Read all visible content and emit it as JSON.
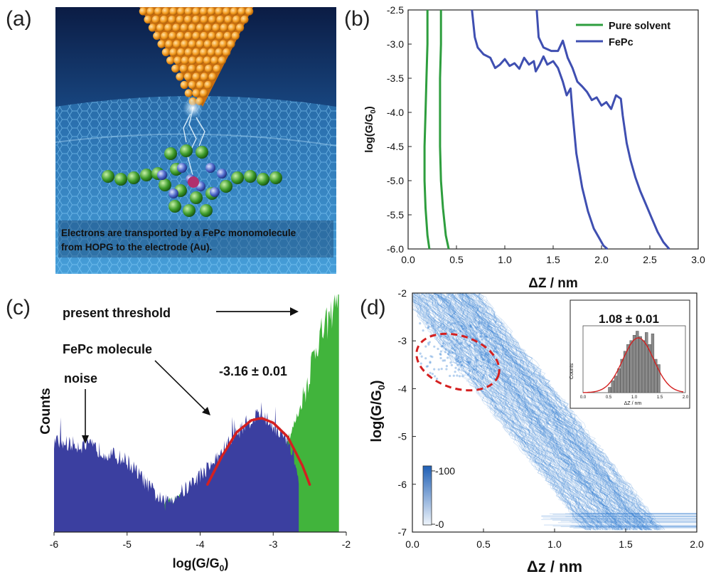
{
  "panels": {
    "a": {
      "label": "(a)",
      "caption_line1": "Electrons are transported by a FePc monomolecule",
      "caption_line2": "from HOPG to the electrode (Au)."
    },
    "b": {
      "label": "(b)"
    },
    "c": {
      "label": "(c)"
    },
    "d": {
      "label": "(d)"
    }
  },
  "colors": {
    "green": "#2e9e3e",
    "blue": "#3f4fb1",
    "red": "#d42020",
    "hist_green": "#41b43c",
    "hist_blue": "#3b3fa0",
    "map_blue": "#2e7bd0"
  },
  "chart_data": [
    {
      "id": "b",
      "type": "line",
      "title": "",
      "xlabel": "ΔZ / nm",
      "ylabel": "log(G/G0)",
      "xlim": [
        0,
        3.0
      ],
      "ylim": [
        -6.0,
        -2.5
      ],
      "xticks": [
        "0.0",
        "0.5",
        "1.0",
        "1.5",
        "2.0",
        "2.5",
        "3.0"
      ],
      "yticks": [
        "-2.5",
        "-3.0",
        "-3.5",
        "-4.0",
        "-4.5",
        "-5.0",
        "-5.5",
        "-6.0"
      ],
      "legend": [
        "Pure solvent",
        "FePc"
      ],
      "legend_position": "top-right",
      "series": [
        {
          "name": "Pure solvent",
          "color": "green",
          "x": [
            0.2,
            0.2,
            0.19,
            0.18,
            0.17,
            0.17,
            0.18,
            0.2,
            0.22
          ],
          "y": [
            -2.5,
            -3.0,
            -3.5,
            -4.0,
            -4.5,
            -5.0,
            -5.4,
            -5.8,
            -6.0
          ]
        },
        {
          "name": "Pure solvent",
          "color": "green",
          "x": [
            0.34,
            0.34,
            0.33,
            0.33,
            0.33,
            0.34,
            0.36,
            0.39,
            0.42
          ],
          "y": [
            -2.5,
            -3.0,
            -3.5,
            -4.0,
            -4.5,
            -5.0,
            -5.4,
            -5.8,
            -6.0
          ]
        },
        {
          "name": "FePc",
          "color": "blue",
          "x": [
            0.66,
            0.69,
            0.72,
            0.78,
            0.85,
            0.9,
            0.95,
            1.0,
            1.05,
            1.1,
            1.15,
            1.2,
            1.25,
            1.3,
            1.32,
            1.36,
            1.4,
            1.44,
            1.5,
            1.55,
            1.6,
            1.64,
            1.68,
            1.7,
            1.74,
            1.8,
            1.86,
            1.92,
            1.98,
            2.02,
            2.06
          ],
          "y": [
            -2.5,
            -2.9,
            -3.05,
            -3.15,
            -3.2,
            -3.35,
            -3.3,
            -3.22,
            -3.32,
            -3.28,
            -3.36,
            -3.2,
            -3.3,
            -3.25,
            -3.4,
            -3.3,
            -3.18,
            -3.3,
            -3.25,
            -3.35,
            -3.55,
            -3.75,
            -3.65,
            -4.0,
            -4.6,
            -5.1,
            -5.45,
            -5.7,
            -5.85,
            -5.95,
            -6.0
          ]
        },
        {
          "name": "FePc",
          "color": "blue",
          "x": [
            1.33,
            1.35,
            1.4,
            1.48,
            1.55,
            1.6,
            1.65,
            1.7,
            1.75,
            1.8,
            1.85,
            1.9,
            1.95,
            2.0,
            2.05,
            2.1,
            2.15,
            2.2,
            2.22,
            2.26,
            2.3,
            2.35,
            2.4,
            2.46,
            2.52,
            2.58,
            2.64,
            2.7
          ],
          "y": [
            -2.5,
            -2.9,
            -3.05,
            -3.1,
            -3.1,
            -2.95,
            -3.2,
            -3.35,
            -3.55,
            -3.62,
            -3.7,
            -3.82,
            -3.78,
            -3.9,
            -3.85,
            -3.95,
            -3.75,
            -3.8,
            -4.05,
            -4.45,
            -4.7,
            -4.95,
            -5.15,
            -5.35,
            -5.55,
            -5.75,
            -5.9,
            -6.0
          ]
        }
      ]
    },
    {
      "id": "c",
      "type": "area",
      "xlabel": "log(G/G0)",
      "ylabel": "Counts",
      "xlim": [
        -6,
        -2
      ],
      "xticks": [
        "-6",
        "-5",
        "-4",
        "-3",
        "-2"
      ],
      "annotations": {
        "threshold": "present threshold",
        "molecule": "FePc molecule",
        "noise": "noise",
        "peak": "-3.16 ± 0.01"
      },
      "series": [
        {
          "name": "green histogram",
          "color": "hist_green",
          "x": [
            -6.0,
            -5.5,
            -5.0,
            -4.5,
            -4.0,
            -3.5,
            -3.0,
            -2.75,
            -2.6,
            -2.5,
            -2.4,
            -2.3,
            -2.2,
            -2.15,
            -2.1
          ],
          "y": [
            0.22,
            0.2,
            0.18,
            0.12,
            0.16,
            0.24,
            0.32,
            0.42,
            0.55,
            0.68,
            0.8,
            0.85,
            0.92,
            1.0,
            1.0
          ]
        },
        {
          "name": "blue histogram",
          "color": "hist_blue",
          "x": [
            -6.0,
            -5.5,
            -5.0,
            -4.5,
            -4.2,
            -4.0,
            -3.8,
            -3.6,
            -3.4,
            -3.2,
            -3.0,
            -2.8,
            -2.7,
            -2.65
          ],
          "y": [
            0.38,
            0.36,
            0.3,
            0.12,
            0.18,
            0.24,
            0.3,
            0.38,
            0.45,
            0.5,
            0.45,
            0.38,
            0.3,
            0.2
          ]
        },
        {
          "name": "gaussian fit",
          "color": "red",
          "x": [
            -3.9,
            -3.7,
            -3.5,
            -3.3,
            -3.16,
            -3.0,
            -2.8,
            -2.6,
            -2.5
          ],
          "y": [
            0.2,
            0.32,
            0.42,
            0.47,
            0.48,
            0.46,
            0.4,
            0.28,
            0.2
          ]
        }
      ]
    },
    {
      "id": "d",
      "type": "heatmap",
      "xlabel": "Δz / nm",
      "ylabel": "log(G/G0)",
      "xlim": [
        0.0,
        2.0
      ],
      "ylim": [
        -7,
        -2
      ],
      "xticks": [
        "0.0",
        "0.5",
        "1.0",
        "1.5",
        "2.0"
      ],
      "yticks": [
        "-2",
        "-3",
        "-4",
        "-5",
        "-6",
        "-7"
      ],
      "colorbar": {
        "max_label": "100",
        "min_label": "0"
      },
      "inset": {
        "type": "bar",
        "value_label": "1.08 ± 0.01",
        "xlabel": "ΔZ / nm",
        "ylabel": "Counts",
        "xticks": [
          "0.0",
          "0.5",
          "1.0",
          "1.5",
          "2.0"
        ],
        "xlim": [
          0,
          2.0
        ],
        "bins_x": [
          0.52,
          0.58,
          0.64,
          0.7,
          0.76,
          0.82,
          0.88,
          0.94,
          1.0,
          1.06,
          1.12,
          1.18,
          1.24,
          1.3,
          1.36,
          1.42,
          1.48
        ],
        "bins_y": [
          0.08,
          0.18,
          0.25,
          0.36,
          0.5,
          0.62,
          0.72,
          0.78,
          0.86,
          0.92,
          0.84,
          0.78,
          0.9,
          0.72,
          0.88,
          0.5,
          0.42
        ],
        "fit_mean": 1.08,
        "fit_sigma": 0.3
      }
    }
  ]
}
